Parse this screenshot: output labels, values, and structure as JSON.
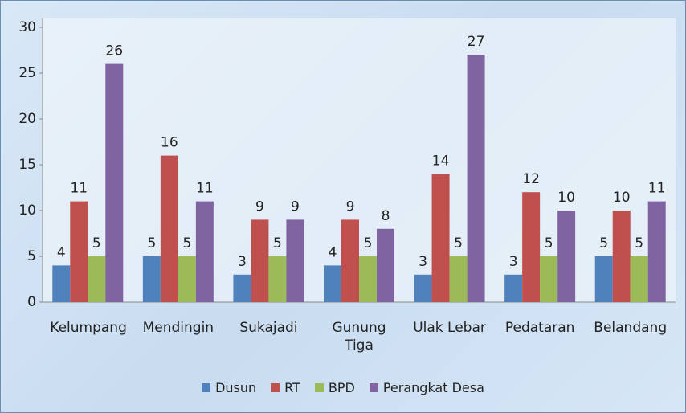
{
  "chart_data": {
    "type": "bar",
    "categories": [
      "Kelumpang",
      "Mendingin",
      "Sukajadi",
      "Gunung Tiga",
      "Ulak Lebar",
      "Pedataran",
      "Belandang"
    ],
    "series": [
      {
        "name": "Dusun",
        "color": "#4f81bd",
        "values": [
          4,
          5,
          3,
          4,
          3,
          3,
          5
        ]
      },
      {
        "name": "RT",
        "color": "#c0504d",
        "values": [
          11,
          16,
          9,
          9,
          14,
          12,
          10
        ]
      },
      {
        "name": "BPD",
        "color": "#9bbb59",
        "values": [
          5,
          5,
          5,
          5,
          5,
          5,
          5
        ]
      },
      {
        "name": "Perangkat Desa",
        "color": "#8064a2",
        "values": [
          26,
          11,
          9,
          8,
          27,
          10,
          11
        ]
      }
    ],
    "ylim": [
      0,
      30
    ],
    "yticks": [
      0,
      5,
      10,
      15,
      20,
      25,
      30
    ],
    "grid": false,
    "legend": "bottom"
  }
}
